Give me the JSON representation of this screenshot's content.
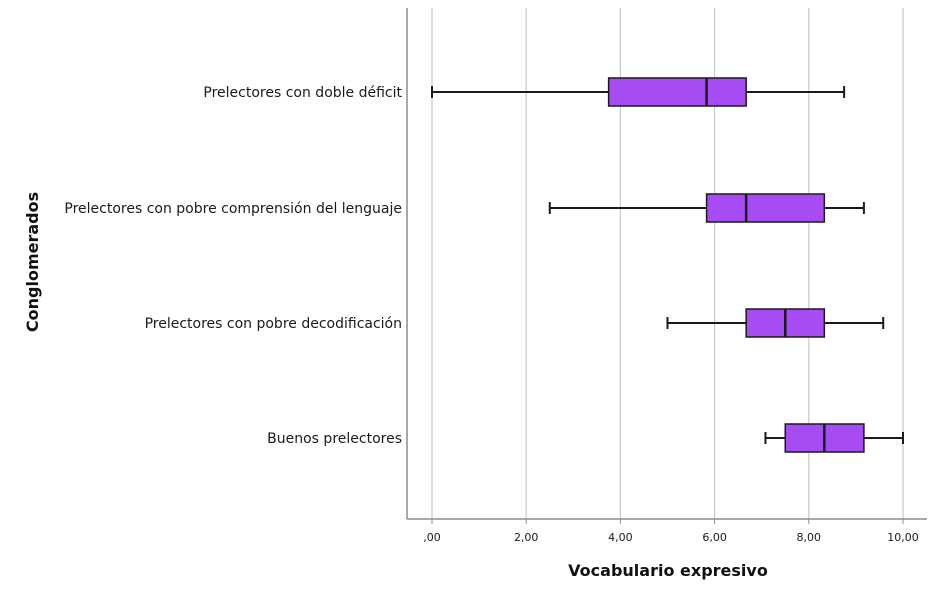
{
  "chart_data": {
    "type": "boxplot",
    "orientation": "horizontal",
    "xlabel": "Vocabulario expresivo",
    "ylabel": "Conglomerados",
    "xlim": [
      0,
      10
    ],
    "xticks": [
      0,
      2,
      4,
      6,
      8,
      10
    ],
    "xtick_labels": [
      ",00",
      "2,00",
      "4,00",
      "6,00",
      "8,00",
      "10,00"
    ],
    "grid": "vertical",
    "colors": {
      "box_fill": "#a74cf5",
      "box_stroke": "#1a1a1a",
      "grid": "#c8c8c8",
      "axis": "#8c8c8c"
    },
    "categories": [
      "Prelectores con doble déficit",
      "Prelectores con pobre comprensión del lenguaje",
      "Prelectores con pobre decodificación",
      "Buenos prelectores"
    ],
    "boxes": [
      {
        "min": 0.0,
        "q1": 3.75,
        "median": 5.83,
        "q3": 6.67,
        "max": 8.75
      },
      {
        "min": 2.5,
        "q1": 5.83,
        "median": 6.67,
        "q3": 8.33,
        "max": 9.17
      },
      {
        "min": 5.0,
        "q1": 6.67,
        "median": 7.5,
        "q3": 8.33,
        "max": 9.58
      },
      {
        "min": 7.08,
        "q1": 7.5,
        "median": 8.33,
        "q3": 9.17,
        "max": 10.0
      }
    ]
  }
}
